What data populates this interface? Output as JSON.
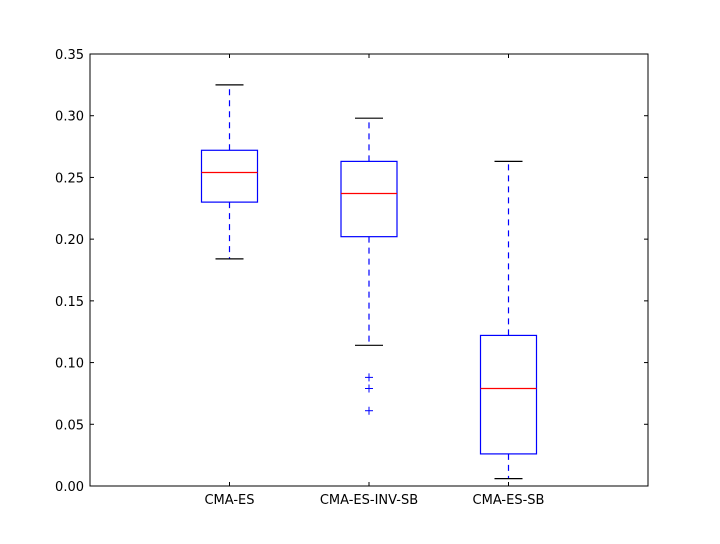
{
  "chart_data": {
    "type": "boxplot",
    "title": "",
    "xlabel": "",
    "ylabel": "",
    "ylim": [
      0.0,
      0.35
    ],
    "y_ticks": [
      "0.00",
      "0.05",
      "0.10",
      "0.15",
      "0.20",
      "0.25",
      "0.30",
      "0.35"
    ],
    "grid": false,
    "categories": [
      "CMA-ES",
      "CMA-ES-INV-SB",
      "CMA-ES-SB"
    ],
    "boxes": [
      {
        "whisker_low": 0.184,
        "q1": 0.23,
        "median": 0.254,
        "q3": 0.272,
        "whisker_high": 0.325,
        "outliers": []
      },
      {
        "whisker_low": 0.114,
        "q1": 0.202,
        "median": 0.237,
        "q3": 0.263,
        "whisker_high": 0.298,
        "outliers": [
          0.088,
          0.079,
          0.061
        ]
      },
      {
        "whisker_low": 0.006,
        "q1": 0.026,
        "median": 0.079,
        "q3": 0.122,
        "whisker_high": 0.263,
        "outliers": []
      }
    ],
    "colors": {
      "box": "#0000ff",
      "whisker": "#0000ff",
      "cap": "#000000",
      "median": "#ff0000",
      "outlier": "#0000ff",
      "axes": "#000000"
    }
  }
}
